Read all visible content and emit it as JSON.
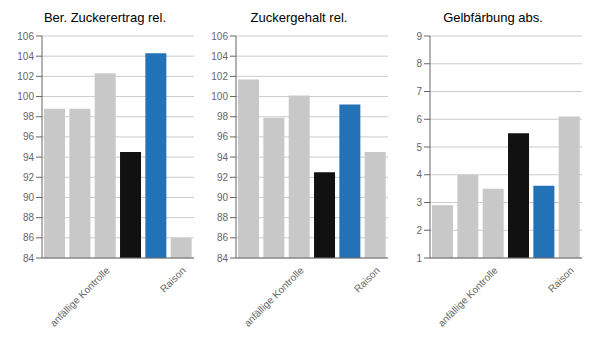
{
  "chart_data": [
    {
      "type": "bar",
      "title": "Ber. Zuckerertrag rel.",
      "categories": [
        null,
        null,
        "anfällige Kontrolle",
        null,
        null,
        "Raison"
      ],
      "values": [
        98.8,
        98.8,
        102.3,
        94.5,
        104.3,
        86.0
      ],
      "colors": [
        "#c8c8c8",
        "#c8c8c8",
        "#c8c8c8",
        "#111111",
        "#2272b5",
        "#c8c8c8"
      ],
      "ylim": [
        84,
        106
      ],
      "yticks": [
        84,
        86,
        88,
        90,
        92,
        94,
        96,
        98,
        100,
        102,
        104,
        106
      ],
      "grid": true
    },
    {
      "type": "bar",
      "title": "Zuckergehalt rel.",
      "categories": [
        null,
        null,
        "anfällige Kontrolle",
        null,
        null,
        "Raison"
      ],
      "values": [
        101.7,
        97.9,
        100.1,
        92.5,
        99.2,
        94.5
      ],
      "colors": [
        "#c8c8c8",
        "#c8c8c8",
        "#c8c8c8",
        "#111111",
        "#2272b5",
        "#c8c8c8"
      ],
      "ylim": [
        84,
        106
      ],
      "yticks": [
        84,
        86,
        88,
        90,
        92,
        94,
        96,
        98,
        100,
        102,
        104,
        106
      ],
      "grid": true
    },
    {
      "type": "bar",
      "title": "Gelbfärbung abs.",
      "categories": [
        null,
        null,
        "anfällige Kontrolle",
        null,
        null,
        "Raison"
      ],
      "values": [
        2.9,
        4.0,
        3.5,
        5.5,
        3.6,
        6.1
      ],
      "colors": [
        "#c8c8c8",
        "#c8c8c8",
        "#c8c8c8",
        "#111111",
        "#2272b5",
        "#c8c8c8"
      ],
      "ylim": [
        1,
        9
      ],
      "yticks": [
        1,
        2,
        3,
        4,
        5,
        6,
        7,
        8,
        9
      ],
      "grid": true
    }
  ]
}
